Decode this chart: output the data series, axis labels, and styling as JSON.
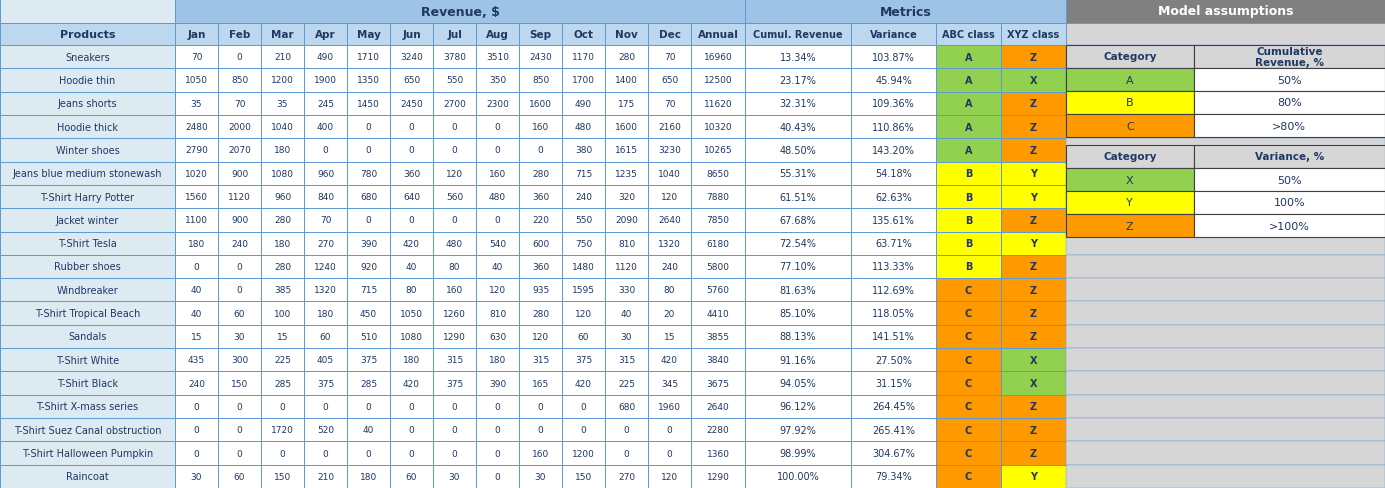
{
  "products": [
    "Sneakers",
    "Hoodie thin",
    "Jeans shorts",
    "Hoodie thick",
    "Winter shoes",
    "Jeans blue medium stonewash",
    "T-Shirt Harry Potter",
    "Jacket winter",
    "T-Shirt Tesla",
    "Rubber shoes",
    "Windbreaker",
    "T-Shirt Tropical Beach",
    "Sandals",
    "T-Shirt White",
    "T-Shirt Black",
    "T-Shirt X-mass series",
    "T-Shirt Suez Canal obstruction",
    "T-Shirt Halloween Pumpkin",
    "Raincoat"
  ],
  "month_col_names": [
    "Jan",
    "Feb",
    "Mar",
    "Apr",
    "May",
    "Jun",
    "Jul",
    "Aug",
    "Sep",
    "Oct",
    "Nov",
    "Dec",
    "Annual"
  ],
  "revenue": [
    [
      70,
      0,
      210,
      490,
      1710,
      3240,
      3780,
      3510,
      2430,
      1170,
      280,
      70,
      16960
    ],
    [
      1050,
      850,
      1200,
      1900,
      1350,
      650,
      550,
      350,
      850,
      1700,
      1400,
      650,
      12500
    ],
    [
      35,
      70,
      35,
      245,
      1450,
      2450,
      2700,
      2300,
      1600,
      490,
      175,
      70,
      11620
    ],
    [
      2480,
      2000,
      1040,
      400,
      0,
      0,
      0,
      0,
      160,
      480,
      1600,
      2160,
      10320
    ],
    [
      2790,
      2070,
      180,
      0,
      0,
      0,
      0,
      0,
      0,
      380,
      1615,
      3230,
      10265
    ],
    [
      1020,
      900,
      1080,
      960,
      780,
      360,
      120,
      160,
      280,
      715,
      1235,
      1040,
      8650
    ],
    [
      1560,
      1120,
      960,
      840,
      680,
      640,
      560,
      480,
      360,
      240,
      320,
      120,
      7880
    ],
    [
      1100,
      900,
      280,
      70,
      0,
      0,
      0,
      0,
      220,
      550,
      2090,
      2640,
      7850
    ],
    [
      180,
      240,
      180,
      270,
      390,
      420,
      480,
      540,
      600,
      750,
      810,
      1320,
      6180
    ],
    [
      0,
      0,
      280,
      1240,
      920,
      40,
      80,
      40,
      360,
      1480,
      1120,
      240,
      5800
    ],
    [
      40,
      0,
      385,
      1320,
      715,
      80,
      160,
      120,
      935,
      1595,
      330,
      80,
      5760
    ],
    [
      40,
      60,
      100,
      180,
      450,
      1050,
      1260,
      810,
      280,
      120,
      40,
      20,
      4410
    ],
    [
      15,
      30,
      15,
      60,
      510,
      1080,
      1290,
      630,
      120,
      60,
      30,
      15,
      3855
    ],
    [
      435,
      300,
      225,
      405,
      375,
      180,
      315,
      180,
      315,
      375,
      315,
      420,
      3840
    ],
    [
      240,
      150,
      285,
      375,
      285,
      420,
      375,
      390,
      165,
      420,
      225,
      345,
      3675
    ],
    [
      0,
      0,
      0,
      0,
      0,
      0,
      0,
      0,
      0,
      0,
      680,
      1960,
      2640
    ],
    [
      0,
      0,
      1720,
      520,
      40,
      0,
      0,
      0,
      0,
      0,
      0,
      0,
      2280
    ],
    [
      0,
      0,
      0,
      0,
      0,
      0,
      0,
      0,
      160,
      1200,
      0,
      0,
      1360
    ],
    [
      30,
      60,
      150,
      210,
      180,
      60,
      30,
      0,
      30,
      150,
      270,
      120,
      1290
    ]
  ],
  "cumul_revenue": [
    "13.34%",
    "23.17%",
    "32.31%",
    "40.43%",
    "48.50%",
    "55.31%",
    "61.51%",
    "67.68%",
    "72.54%",
    "77.10%",
    "81.63%",
    "85.10%",
    "88.13%",
    "91.16%",
    "94.05%",
    "96.12%",
    "97.92%",
    "98.99%",
    "100.00%"
  ],
  "variance": [
    "103.87%",
    "45.94%",
    "109.36%",
    "110.86%",
    "143.20%",
    "54.18%",
    "62.63%",
    "135.61%",
    "63.71%",
    "113.33%",
    "112.69%",
    "118.05%",
    "141.51%",
    "27.50%",
    "31.15%",
    "264.45%",
    "265.41%",
    "304.67%",
    "79.34%"
  ],
  "abc_class": [
    "A",
    "A",
    "A",
    "A",
    "A",
    "B",
    "B",
    "B",
    "B",
    "B",
    "C",
    "C",
    "C",
    "C",
    "C",
    "C",
    "C",
    "C",
    "C"
  ],
  "xyz_class": [
    "Z",
    "X",
    "Z",
    "Z",
    "Z",
    "Y",
    "Y",
    "Z",
    "Y",
    "Z",
    "Z",
    "Z",
    "Z",
    "X",
    "X",
    "Z",
    "Z",
    "Z",
    "Y"
  ],
  "abc_colors": {
    "A": "#92D050",
    "B": "#FFFF00",
    "C": "#FF9900"
  },
  "xyz_colors": {
    "X": "#92D050",
    "Y": "#FFFF00",
    "Z": "#FF9900"
  },
  "color_header_top": "#9DC3E6",
  "color_subheader": "#BDD7EE",
  "color_product_col": "#DEEAF1",
  "color_data_bg": "#FFFFFF",
  "color_model_bg": "#D6D6D6",
  "color_model_hdr": "#808080",
  "color_border": "#5B9BD5",
  "color_border_dark": "#404040",
  "color_text": "#1F3864",
  "color_text_white": "#FFFFFF",
  "title_revenue": "Revenue, $",
  "title_metrics": "Metrics",
  "title_model": "Model assumptions",
  "model_cumul_hdr": [
    "Category",
    "Cumulative\nRevenue, %"
  ],
  "model_cumul_data": [
    [
      "A",
      "#92D050",
      "50%"
    ],
    [
      "B",
      "#FFFF00",
      "80%"
    ],
    [
      "C",
      "#FF9900",
      ">80%"
    ]
  ],
  "model_var_hdr": [
    "Category",
    "Variance, %"
  ],
  "model_var_data": [
    [
      "X",
      "#92D050",
      "50%"
    ],
    [
      "Y",
      "#FFFF00",
      "100%"
    ],
    [
      "Z",
      "#FF9900",
      ">100%"
    ]
  ]
}
